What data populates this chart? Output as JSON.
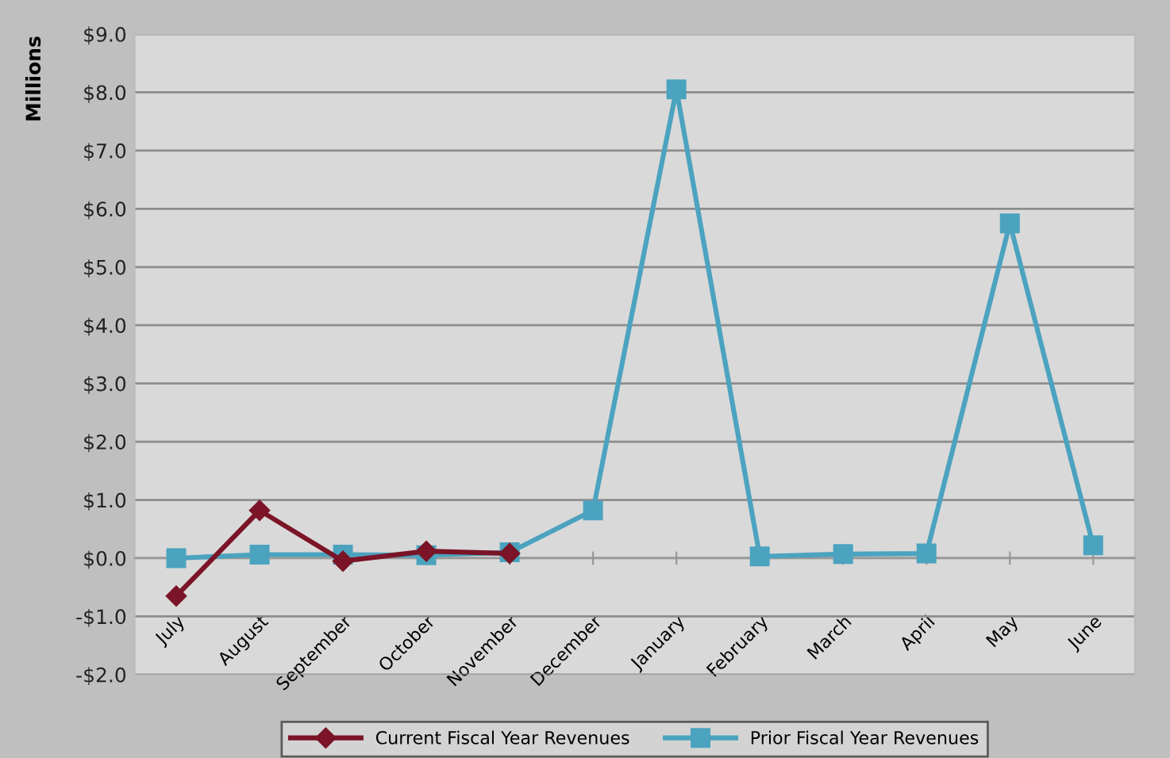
{
  "chart_data": {
    "type": "line",
    "ylabel": "Millions",
    "categories": [
      "July",
      "August",
      "September",
      "October",
      "November",
      "December",
      "January",
      "February",
      "March",
      "April",
      "May",
      "June"
    ],
    "series": [
      {
        "name": "Current Fiscal Year Revenues",
        "color": "#7b1427",
        "marker": "diamond",
        "values": [
          -0.65,
          0.82,
          -0.05,
          0.12,
          0.08,
          null,
          null,
          null,
          null,
          null,
          null,
          null
        ]
      },
      {
        "name": "Prior Fiscal Year Revenues",
        "color": "#4ba3bf",
        "marker": "square",
        "values": [
          0.0,
          0.06,
          0.06,
          0.05,
          0.1,
          0.82,
          8.05,
          0.03,
          0.07,
          0.08,
          5.75,
          0.22
        ]
      }
    ],
    "ylim": [
      -2,
      9
    ],
    "yticks": [
      {
        "value": -2,
        "label": "-$2.0"
      },
      {
        "value": -1,
        "label": "-$1.0"
      },
      {
        "value": 0,
        "label": "$0.0"
      },
      {
        "value": 1,
        "label": "$1.0"
      },
      {
        "value": 2,
        "label": "$2.0"
      },
      {
        "value": 3,
        "label": "$3.0"
      },
      {
        "value": 4,
        "label": "$4.0"
      },
      {
        "value": 5,
        "label": "$5.0"
      },
      {
        "value": 6,
        "label": "$6.0"
      },
      {
        "value": 7,
        "label": "$7.0"
      },
      {
        "value": 8,
        "label": "$8.0"
      },
      {
        "value": 9,
        "label": "$9.0"
      }
    ],
    "grid": "y",
    "legend": "bottom",
    "line_style": "solid"
  }
}
